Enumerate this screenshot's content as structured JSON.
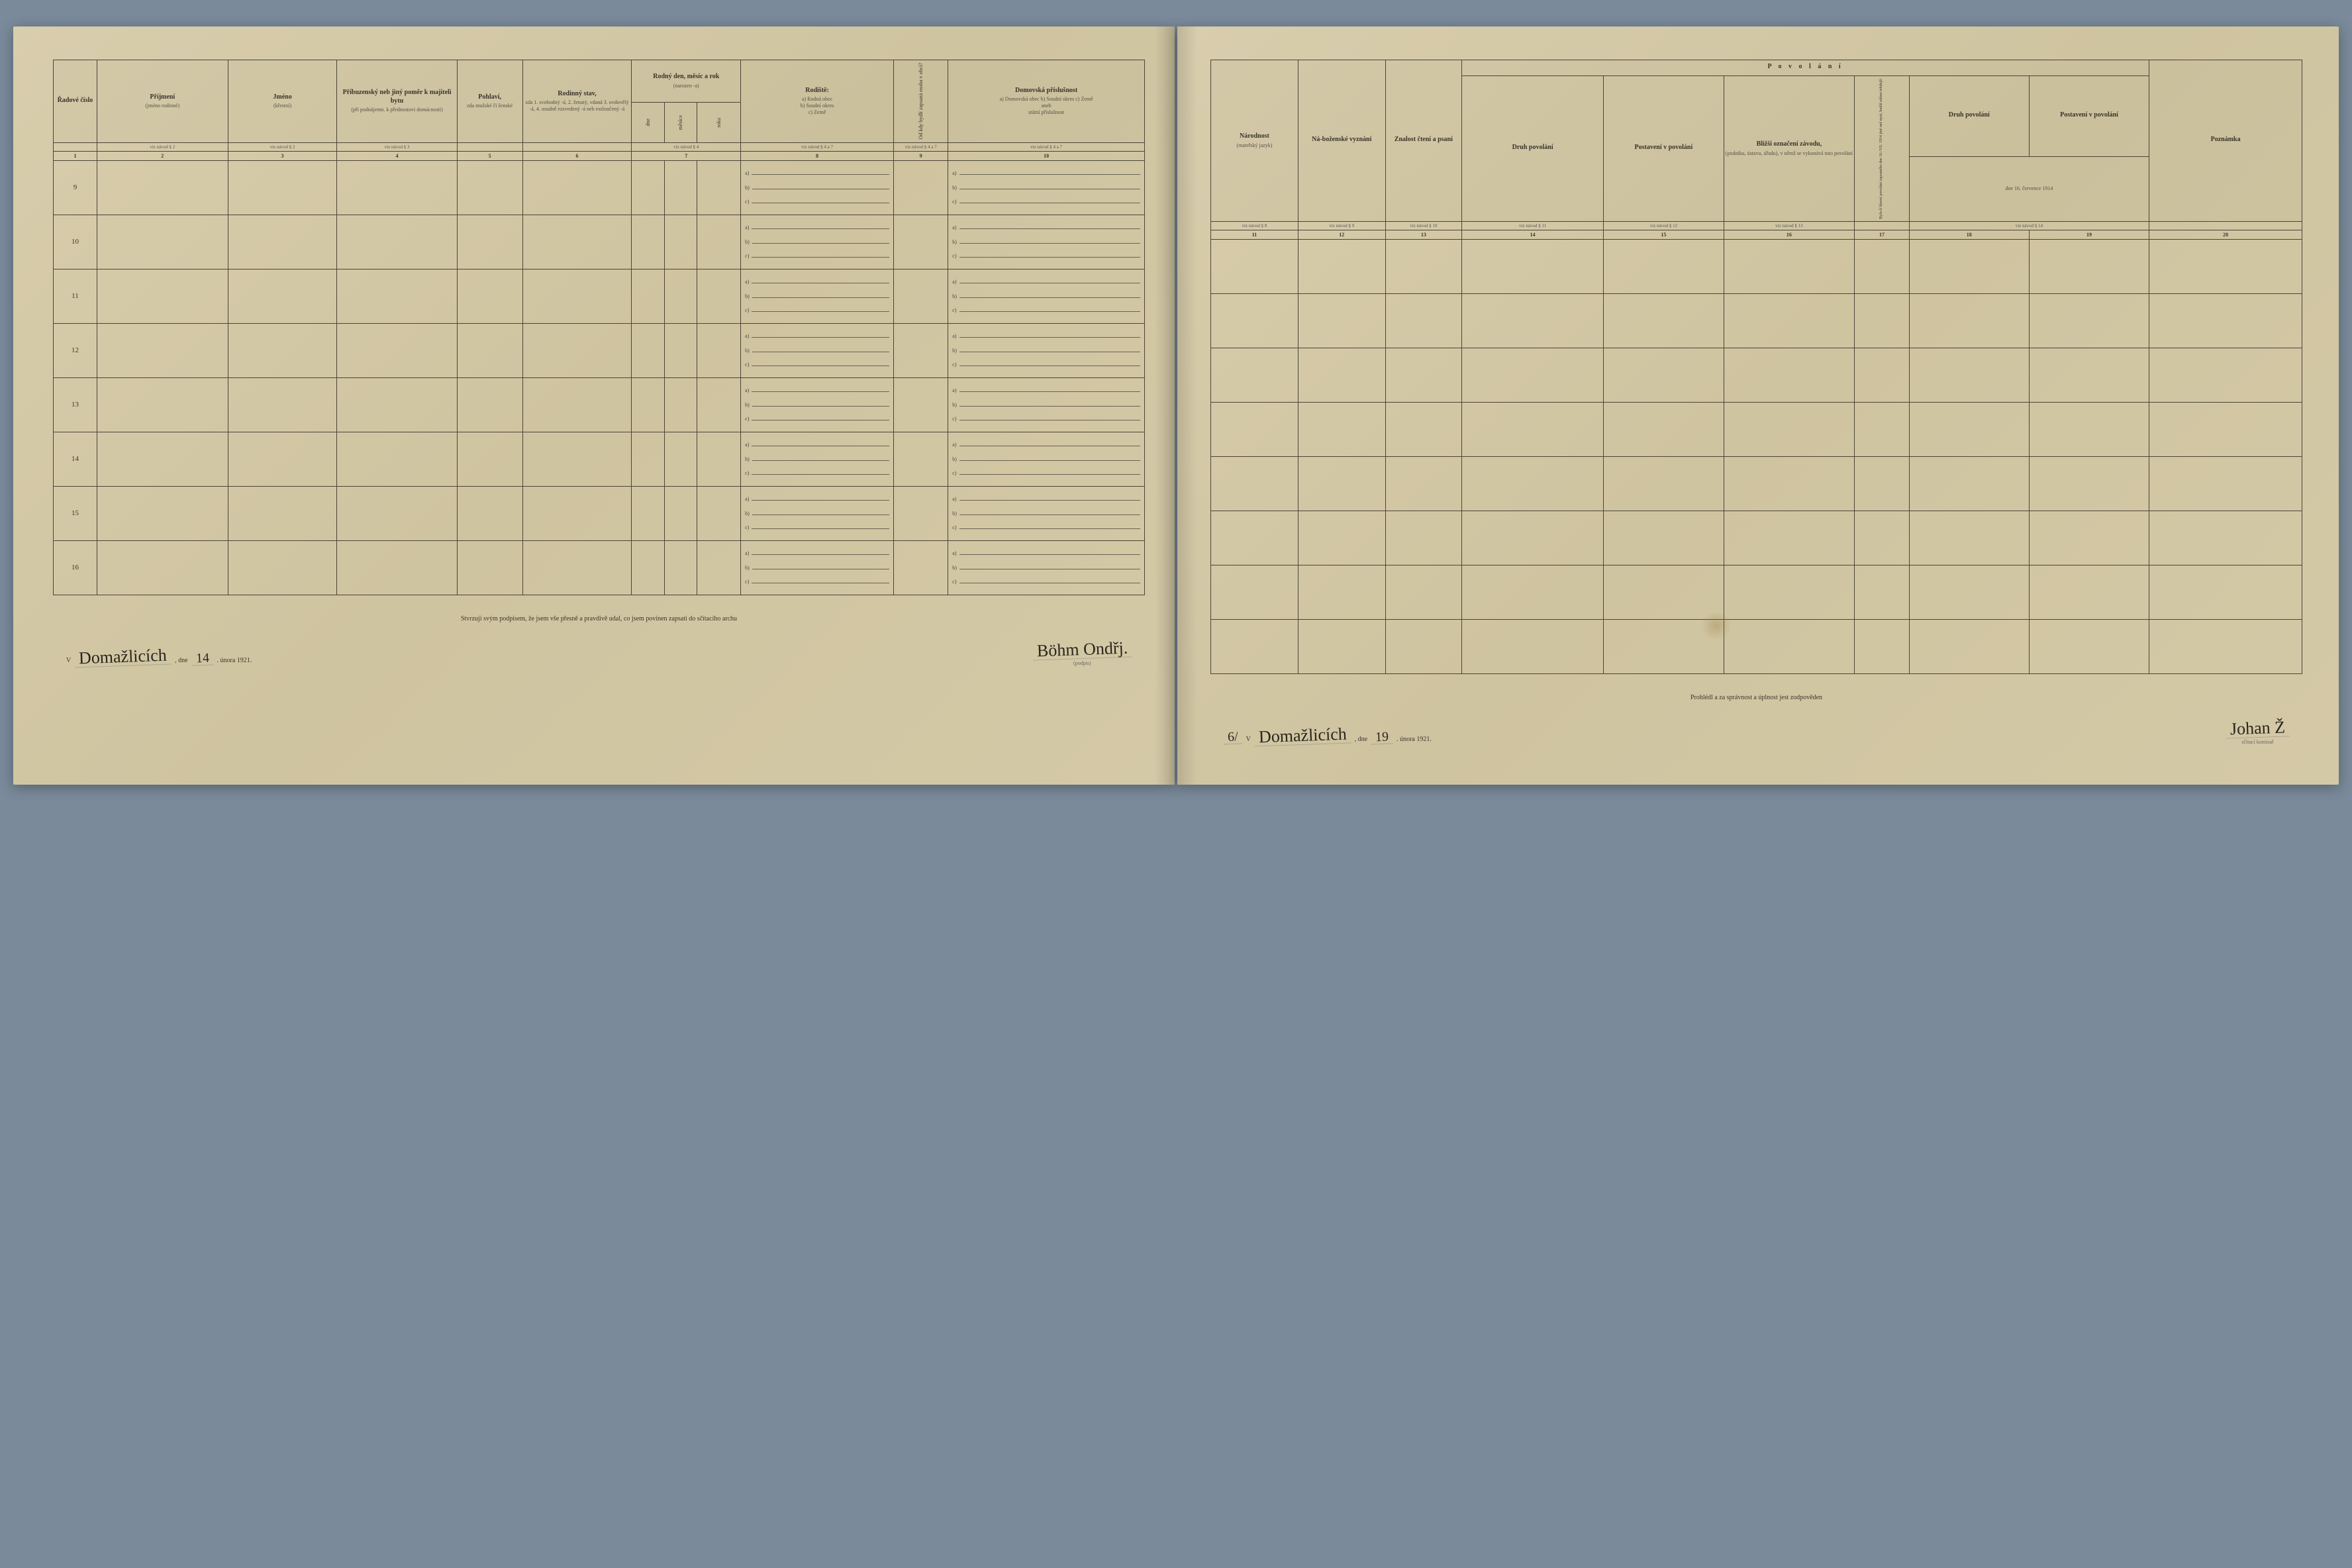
{
  "colors": {
    "paper": "#d4c9a8",
    "ink": "#3a342a",
    "rule": "#4a4438",
    "desk": "#7a8a9a"
  },
  "left": {
    "columns": {
      "c1": {
        "main": "Řadové číslo",
        "ref": "1"
      },
      "c2": {
        "main": "Příjmení",
        "sub": "(jméno rodinné)",
        "ref": "viz návod § 2",
        "num": "2"
      },
      "c3": {
        "main": "Jméno",
        "sub": "(křestní)",
        "ref": "viz návod § 2",
        "num": "3"
      },
      "c4": {
        "main": "Příbuzenský neb jiný poměr k majiteli bytu",
        "sub": "(při podnájemn. k přednostovi domácnosti)",
        "ref": "viz návod § 3",
        "num": "4"
      },
      "c5": {
        "main": "Pohlaví,",
        "sub": "zda mužské či ženské",
        "ref": "",
        "num": "5"
      },
      "c6": {
        "main": "Rodinný stav,",
        "sub": "zda 1. svobodný -á, 2. ženatý, vdaná 3. ovdovělý -á, 4. soudně rozvedený -á neb rozloučený -á",
        "ref": "",
        "num": "6"
      },
      "c7": {
        "main": "Rodný den, měsíc a rok",
        "sub": "(narozen -a)",
        "sub2a": "dne",
        "sub2b": "měsíce",
        "sub2c": "roku",
        "ref": "viz návod § 4",
        "num": "7"
      },
      "c8": {
        "main": "Rodiště:",
        "sub": "a) Rodná obec\nb) Soudní okres\nc) Země",
        "ref": "viz návod § 4 a 7",
        "num": "8"
      },
      "c9": {
        "main": "Od kdy bydlí zapsaná osoba v obci?",
        "ref": "viz návod § 4 a 7",
        "num": "9"
      },
      "c10": {
        "main": "Domovská příslušnost",
        "sub": "a) Domovská obec b) Soudní okres c) Země\naneb\nstátní příslušnost",
        "ref": "viz návod § 4 a 7",
        "num": "10"
      }
    },
    "rows": [
      "9",
      "10",
      "11",
      "12",
      "13",
      "14",
      "15",
      "16"
    ],
    "footer": {
      "attest": "Stvrzuji svým podpisem, že jsem vše přesně a pravdivě udal, co jsem povinen zapsati do sčítacího archu",
      "place": "Domažlicích",
      "dne": ", dne ",
      "day": "14",
      "month_year": ". února 1921.",
      "signature": "Böhm Ondřj.",
      "sig_caption": "(podpis)"
    }
  },
  "right": {
    "header_group": "P o v o l á n í",
    "columns": {
      "c11": {
        "main": "Národnost",
        "sub": "(mateřský jazyk)",
        "ref": "viz návod § 8",
        "num": "11"
      },
      "c12": {
        "main": "Ná-boženské vyznání",
        "ref": "viz návod § 9",
        "num": "12"
      },
      "c13": {
        "main": "Znalost čtení a psaní",
        "ref": "viz návod § 10",
        "num": "13"
      },
      "c14": {
        "main": "Druh povolání",
        "ref": "viz návod § 11",
        "num": "14"
      },
      "c15": {
        "main": "Postavení v povolání",
        "ref": "viz návod § 12",
        "num": "15"
      },
      "c16": {
        "main": "Bližší označení závodu,",
        "sub": "(podniku, ústavu, úřadu), v němž se vykonává toto povolání",
        "ref": "viz návod § 13",
        "num": "16"
      },
      "c17": {
        "main": "",
        "sub": "Bylo-li hlavní povolání zapsaného dne 16./VII. 1914 jiné než nyní, budiž udáno tehdejší",
        "ref": "",
        "num": "17"
      },
      "c18": {
        "main": "Druh povolání",
        "ref": "",
        "num": "18"
      },
      "c19": {
        "main": "Postavení v povolání",
        "ref": "",
        "num": "19"
      },
      "c18_19_sub": "dne 16. července 1914",
      "c18_19_ref": "viz návod § 14",
      "c20": {
        "main": "Poznámka",
        "ref": "",
        "num": "20"
      }
    },
    "rows": [
      "",
      "",
      "",
      "",
      "",
      "",
      "",
      ""
    ],
    "footer": {
      "attest": "Prohlédl a za správnost a úplnost jest zodpověden",
      "place_pre": "6/",
      "place": "Domažlicích",
      "dne": ", dne ",
      "day": "19",
      "month_year": ". února 1921.",
      "signature": "Johan Ž",
      "sig_caption": "sčítací komisař"
    }
  },
  "abc": {
    "a": "a)",
    "b": "b)",
    "c": "c)"
  }
}
